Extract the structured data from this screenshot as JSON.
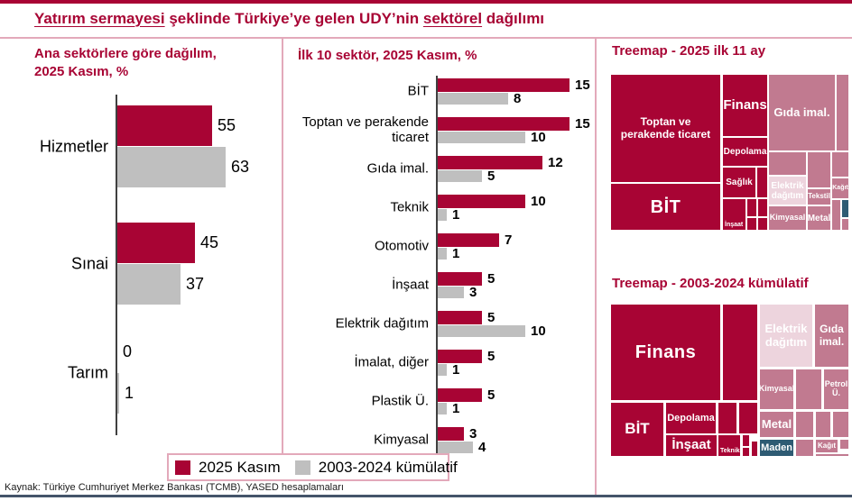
{
  "page_title": {
    "underlined_1": "Yatırım sermayesi",
    "middle": " şeklinde Türkiye’ye gelen UDY’nin ",
    "underlined_2": "sektörel",
    "end": " dağılımı"
  },
  "colors": {
    "accent_red": "#A80434",
    "bar_gray": "#BFBFBF",
    "treemap_mauve": "#C17A90",
    "treemap_light_pink": "#EDD4DD",
    "treemap_teal": "#2E5B73",
    "divider_pink": "#E3A9BA",
    "bottom_rule_navy": "#44546A"
  },
  "legend": {
    "items": [
      {
        "label": "2025 Kasım",
        "color": "#A80434"
      },
      {
        "label": "2003-2024 kümülatif",
        "color": "#BFBFBF"
      }
    ]
  },
  "source": "Kaynak: Türkiye Cumhuriyet Merkez Bankası (TCMB), YASED hesaplamaları",
  "chart_data": [
    {
      "type": "bar",
      "orientation": "horizontal",
      "title": "Ana sektörlere göre dağılım, 2025 Kasım, %",
      "title_lines": [
        "Ana sektörlere göre dağılım,",
        "2025 Kasım, %"
      ],
      "categories": [
        "Hizmetler",
        "Sınai",
        "Tarım"
      ],
      "series": [
        {
          "name": "2025 Kasım",
          "values": [
            55,
            45,
            0
          ]
        },
        {
          "name": "2003-2024 kümülatif",
          "values": [
            63,
            37,
            1
          ]
        }
      ],
      "value_labels_shown": true,
      "xlim": [
        0,
        70
      ],
      "grid": false
    },
    {
      "type": "bar",
      "orientation": "horizontal",
      "title": "İlk 10 sektör, 2025 Kasım, %",
      "categories": [
        "BİT",
        "Toptan ve perakende ticaret",
        "Gıda imal.",
        "Teknik",
        "Otomotiv",
        "İnşaat",
        "Elektrik dağıtım",
        "İmalat, diğer",
        "Plastik Ü.",
        "Kimyasal"
      ],
      "series": [
        {
          "name": "2025 Kasım",
          "values": [
            15,
            15,
            12,
            10,
            7,
            5,
            5,
            5,
            5,
            3
          ]
        },
        {
          "name": "2003-2024 kümülatif",
          "values": [
            8,
            10,
            5,
            1,
            1,
            3,
            10,
            1,
            1,
            4
          ]
        }
      ],
      "value_labels_shown": true,
      "xlim": [
        0,
        16
      ],
      "grid": false
    },
    {
      "type": "treemap",
      "title": "Treemap - 2025 ilk 11 ay",
      "blocks": [
        {
          "label": "Toptan ve perakende ticaret",
          "color": "red",
          "size": "large"
        },
        {
          "label": "BİT",
          "color": "red",
          "size": "large"
        },
        {
          "label": "Finans",
          "color": "red",
          "size": "medium"
        },
        {
          "label": "Depolama",
          "color": "red",
          "size": "small"
        },
        {
          "label": "Sağlık",
          "color": "red",
          "size": "small"
        },
        {
          "label": "İnşaat",
          "color": "red",
          "size": "small"
        },
        {
          "label": "Gıda imal.",
          "color": "mauve",
          "size": "medium"
        },
        {
          "label": "Elektrik dağıtım",
          "color": "light-pink",
          "size": "small"
        },
        {
          "label": "Tekstil",
          "color": "mauve",
          "size": "small"
        },
        {
          "label": "Kağıt",
          "color": "mauve",
          "size": "small"
        },
        {
          "label": "Kimyasal",
          "color": "mauve",
          "size": "small"
        },
        {
          "label": "Metal",
          "color": "mauve",
          "size": "small"
        }
      ]
    },
    {
      "type": "treemap",
      "title": "Treemap - 2003-2024 kümülatif",
      "blocks": [
        {
          "label": "Finans",
          "color": "red",
          "size": "large"
        },
        {
          "label": "BİT",
          "color": "red",
          "size": "medium"
        },
        {
          "label": "Depolama",
          "color": "red",
          "size": "small"
        },
        {
          "label": "İnşaat",
          "color": "red",
          "size": "small"
        },
        {
          "label": "Teknik",
          "color": "red",
          "size": "small"
        },
        {
          "label": "Elektrik dağıtım",
          "color": "light-pink",
          "size": "medium"
        },
        {
          "label": "Gıda imal.",
          "color": "mauve",
          "size": "medium"
        },
        {
          "label": "Kimyasal",
          "color": "mauve",
          "size": "small"
        },
        {
          "label": "Petrol Ü.",
          "color": "mauve",
          "size": "small"
        },
        {
          "label": "Metal",
          "color": "mauve",
          "size": "small"
        },
        {
          "label": "Maden",
          "color": "teal",
          "size": "small"
        },
        {
          "label": "Kağıt",
          "color": "mauve",
          "size": "small"
        }
      ]
    }
  ]
}
